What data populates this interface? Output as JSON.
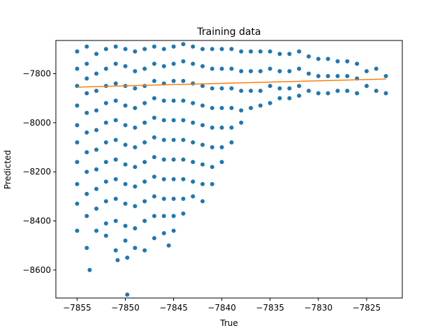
{
  "chart_data": {
    "type": "scatter",
    "title": "Training data",
    "xlabel": "True",
    "ylabel": "Predicted",
    "xlim": [
      -7857.2,
      -7821.3
    ],
    "ylim": [
      -8714,
      -7665
    ],
    "x_ticks": [
      -7855,
      -7850,
      -7845,
      -7840,
      -7835,
      -7830,
      -7825
    ],
    "y_ticks": [
      -8600,
      -8400,
      -8200,
      -8000,
      -7800
    ],
    "grid": false,
    "colors": {
      "points": "#1f77b4",
      "fit_line": "#ff7f0e"
    },
    "series": [
      {
        "type": "scatter",
        "points": [
          [
            -7855,
            -7710
          ],
          [
            -7855,
            -7780
          ],
          [
            -7855,
            -7850
          ],
          [
            -7855,
            -7930
          ],
          [
            -7855,
            -8010
          ],
          [
            -7855,
            -8080
          ],
          [
            -7855,
            -8160
          ],
          [
            -7855,
            -8250
          ],
          [
            -7855,
            -8330
          ],
          [
            -7855,
            -8440
          ],
          [
            -7854,
            -7690
          ],
          [
            -7854,
            -7760
          ],
          [
            -7854,
            -7820
          ],
          [
            -7854,
            -7880
          ],
          [
            -7854,
            -7960
          ],
          [
            -7854,
            -8040
          ],
          [
            -7854,
            -8120
          ],
          [
            -7854,
            -8200
          ],
          [
            -7854,
            -8290
          ],
          [
            -7854,
            -8380
          ],
          [
            -7854,
            -8510
          ],
          [
            -7853.7,
            -8600
          ],
          [
            -7853,
            -7720
          ],
          [
            -7853,
            -7800
          ],
          [
            -7853,
            -7870
          ],
          [
            -7853,
            -7950
          ],
          [
            -7853,
            -8030
          ],
          [
            -7853,
            -8110
          ],
          [
            -7853,
            -8190
          ],
          [
            -7853,
            -8270
          ],
          [
            -7853,
            -8350
          ],
          [
            -7853,
            -8440
          ],
          [
            -7852,
            -7700
          ],
          [
            -7852,
            -7780
          ],
          [
            -7852,
            -7850
          ],
          [
            -7852,
            -7920
          ],
          [
            -7852,
            -8000
          ],
          [
            -7852,
            -8080
          ],
          [
            -7852,
            -8160
          ],
          [
            -7852,
            -8240
          ],
          [
            -7852,
            -8320
          ],
          [
            -7852,
            -8410
          ],
          [
            -7852,
            -8460
          ],
          [
            -7851,
            -7690
          ],
          [
            -7851,
            -7760
          ],
          [
            -7851,
            -7840
          ],
          [
            -7851,
            -7910
          ],
          [
            -7851,
            -7990
          ],
          [
            -7851,
            -8070
          ],
          [
            -7851,
            -8150
          ],
          [
            -7851,
            -8230
          ],
          [
            -7851,
            -8310
          ],
          [
            -7851,
            -8400
          ],
          [
            -7851,
            -8520
          ],
          [
            -7850.8,
            -8560
          ],
          [
            -7850,
            -7700
          ],
          [
            -7850,
            -7770
          ],
          [
            -7850,
            -7850
          ],
          [
            -7850,
            -7930
          ],
          [
            -7850,
            -8010
          ],
          [
            -7850,
            -8090
          ],
          [
            -7850,
            -8170
          ],
          [
            -7850,
            -8250
          ],
          [
            -7850,
            -8330
          ],
          [
            -7850,
            -8420
          ],
          [
            -7850,
            -8480
          ],
          [
            -7849.8,
            -8550
          ],
          [
            -7849.8,
            -8700
          ],
          [
            -7849,
            -7710
          ],
          [
            -7849,
            -7790
          ],
          [
            -7849,
            -7860
          ],
          [
            -7849,
            -7940
          ],
          [
            -7849,
            -8020
          ],
          [
            -7849,
            -8100
          ],
          [
            -7849,
            -8180
          ],
          [
            -7849,
            -8260
          ],
          [
            -7849,
            -8340
          ],
          [
            -7849,
            -8430
          ],
          [
            -7849,
            -8510
          ],
          [
            -7848,
            -7700
          ],
          [
            -7848,
            -7780
          ],
          [
            -7848,
            -7850
          ],
          [
            -7848,
            -7920
          ],
          [
            -7848,
            -8000
          ],
          [
            -7848,
            -8080
          ],
          [
            -7848,
            -8160
          ],
          [
            -7848,
            -8240
          ],
          [
            -7848,
            -8320
          ],
          [
            -7848,
            -8400
          ],
          [
            -7848,
            -8520
          ],
          [
            -7847,
            -7690
          ],
          [
            -7847,
            -7760
          ],
          [
            -7847,
            -7830
          ],
          [
            -7847,
            -7900
          ],
          [
            -7847,
            -7980
          ],
          [
            -7847,
            -8060
          ],
          [
            -7847,
            -8140
          ],
          [
            -7847,
            -8220
          ],
          [
            -7847,
            -8300
          ],
          [
            -7847,
            -8380
          ],
          [
            -7847,
            -8470
          ],
          [
            -7846,
            -7700
          ],
          [
            -7846,
            -7770
          ],
          [
            -7846,
            -7840
          ],
          [
            -7846,
            -7910
          ],
          [
            -7846,
            -7990
          ],
          [
            -7846,
            -8070
          ],
          [
            -7846,
            -8150
          ],
          [
            -7846,
            -8230
          ],
          [
            -7846,
            -8310
          ],
          [
            -7846,
            -8380
          ],
          [
            -7846,
            -8450
          ],
          [
            -7845.5,
            -8500
          ],
          [
            -7845,
            -7690
          ],
          [
            -7845,
            -7760
          ],
          [
            -7845,
            -7830
          ],
          [
            -7845,
            -7910
          ],
          [
            -7845,
            -7990
          ],
          [
            -7845,
            -8070
          ],
          [
            -7845,
            -8150
          ],
          [
            -7845,
            -8230
          ],
          [
            -7845,
            -8310
          ],
          [
            -7845,
            -8380
          ],
          [
            -7845,
            -8440
          ],
          [
            -7844,
            -7680
          ],
          [
            -7844,
            -7750
          ],
          [
            -7844,
            -7830
          ],
          [
            -7844,
            -7910
          ],
          [
            -7844,
            -7990
          ],
          [
            -7844,
            -8070
          ],
          [
            -7844,
            -8150
          ],
          [
            -7844,
            -8230
          ],
          [
            -7844,
            -8310
          ],
          [
            -7844,
            -8370
          ],
          [
            -7843,
            -7690
          ],
          [
            -7843,
            -7760
          ],
          [
            -7843,
            -7840
          ],
          [
            -7843,
            -7920
          ],
          [
            -7843,
            -8000
          ],
          [
            -7843,
            -8080
          ],
          [
            -7843,
            -8160
          ],
          [
            -7843,
            -8240
          ],
          [
            -7843,
            -8300
          ],
          [
            -7842,
            -7700
          ],
          [
            -7842,
            -7770
          ],
          [
            -7842,
            -7850
          ],
          [
            -7842,
            -7930
          ],
          [
            -7842,
            -8010
          ],
          [
            -7842,
            -8090
          ],
          [
            -7842,
            -8170
          ],
          [
            -7842,
            -8250
          ],
          [
            -7842,
            -8320
          ],
          [
            -7841,
            -7700
          ],
          [
            -7841,
            -7780
          ],
          [
            -7841,
            -7860
          ],
          [
            -7841,
            -7940
          ],
          [
            -7841,
            -8020
          ],
          [
            -7841,
            -8100
          ],
          [
            -7841,
            -8180
          ],
          [
            -7841,
            -8250
          ],
          [
            -7840,
            -7700
          ],
          [
            -7840,
            -7780
          ],
          [
            -7840,
            -7860
          ],
          [
            -7840,
            -7940
          ],
          [
            -7840,
            -8020
          ],
          [
            -7840,
            -8100
          ],
          [
            -7840,
            -8160
          ],
          [
            -7839,
            -7700
          ],
          [
            -7839,
            -7780
          ],
          [
            -7839,
            -7860
          ],
          [
            -7839,
            -7940
          ],
          [
            -7839,
            -8020
          ],
          [
            -7839,
            -8080
          ],
          [
            -7838,
            -7710
          ],
          [
            -7838,
            -7790
          ],
          [
            -7838,
            -7870
          ],
          [
            -7838,
            -7950
          ],
          [
            -7838,
            -8000
          ],
          [
            -7837,
            -7710
          ],
          [
            -7837,
            -7790
          ],
          [
            -7837,
            -7870
          ],
          [
            -7837,
            -7940
          ],
          [
            -7836,
            -7710
          ],
          [
            -7836,
            -7790
          ],
          [
            -7836,
            -7870
          ],
          [
            -7836,
            -7930
          ],
          [
            -7835,
            -7710
          ],
          [
            -7835,
            -7780
          ],
          [
            -7835,
            -7850
          ],
          [
            -7835,
            -7920
          ],
          [
            -7834,
            -7720
          ],
          [
            -7834,
            -7790
          ],
          [
            -7834,
            -7860
          ],
          [
            -7834,
            -7900
          ],
          [
            -7833,
            -7720
          ],
          [
            -7833,
            -7790
          ],
          [
            -7833,
            -7860
          ],
          [
            -7833,
            -7900
          ],
          [
            -7832,
            -7710
          ],
          [
            -7832,
            -7780
          ],
          [
            -7832,
            -7850
          ],
          [
            -7832,
            -7890
          ],
          [
            -7831,
            -7730
          ],
          [
            -7831,
            -7800
          ],
          [
            -7831,
            -7870
          ],
          [
            -7830,
            -7740
          ],
          [
            -7830,
            -7810
          ],
          [
            -7830,
            -7880
          ],
          [
            -7829,
            -7740
          ],
          [
            -7829,
            -7810
          ],
          [
            -7829,
            -7880
          ],
          [
            -7828,
            -7750
          ],
          [
            -7828,
            -7810
          ],
          [
            -7828,
            -7870
          ],
          [
            -7827,
            -7750
          ],
          [
            -7827,
            -7810
          ],
          [
            -7827,
            -7870
          ],
          [
            -7826,
            -7760
          ],
          [
            -7826,
            -7820
          ],
          [
            -7826,
            -7880
          ],
          [
            -7825,
            -7790
          ],
          [
            -7825,
            -7850
          ],
          [
            -7824,
            -7780
          ],
          [
            -7824,
            -7870
          ],
          [
            -7823,
            -7810
          ],
          [
            -7823,
            -7880
          ]
        ]
      },
      {
        "type": "line",
        "points": [
          [
            -7855,
            -7855
          ],
          [
            -7823,
            -7822
          ]
        ]
      }
    ]
  }
}
